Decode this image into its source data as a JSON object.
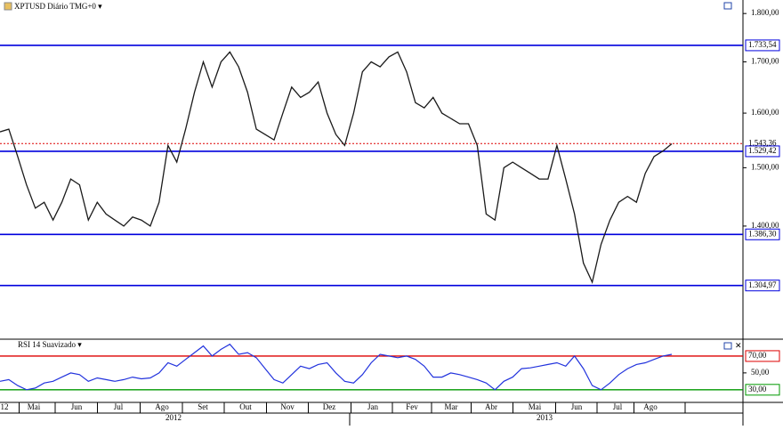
{
  "chart_data": [
    {
      "type": "line",
      "title": "XPTUSD Diário TMG+0 ▾",
      "log_scale": true,
      "color": "#1a1a1a",
      "values": [
        1565,
        1570,
        1520,
        1470,
        1430,
        1440,
        1410,
        1440,
        1480,
        1470,
        1410,
        1440,
        1420,
        1410,
        1400,
        1415,
        1410,
        1400,
        1440,
        1540,
        1510,
        1570,
        1640,
        1700,
        1650,
        1700,
        1720,
        1690,
        1640,
        1570,
        1560,
        1550,
        1600,
        1650,
        1630,
        1640,
        1660,
        1600,
        1560,
        1540,
        1600,
        1680,
        1700,
        1690,
        1710,
        1720,
        1680,
        1620,
        1610,
        1630,
        1600,
        1590,
        1580,
        1580,
        1540,
        1420,
        1410,
        1500,
        1510,
        1500,
        1490,
        1480,
        1480,
        1540,
        1480,
        1420,
        1340,
        1310,
        1370,
        1410,
        1440,
        1450,
        1440,
        1490,
        1520,
        1530,
        1543
      ],
      "ylim": [
        1226,
        1829
      ],
      "yticks": [
        {
          "value": 1800,
          "label": "1.800,00"
        },
        {
          "value": 1700,
          "label": "1.700,00"
        },
        {
          "value": 1600,
          "label": "1.600,00"
        },
        {
          "value": 1500,
          "label": "1.500,00"
        },
        {
          "value": 1400,
          "label": "1.400,00"
        }
      ],
      "levels": [
        {
          "value": 1733.54,
          "label": "1.733,54"
        },
        {
          "value": 1529.42,
          "label": "1.529,42"
        },
        {
          "value": 1386.3,
          "label": "1.386,30"
        },
        {
          "value": 1304.97,
          "label": "1.304,97"
        }
      ],
      "level_color": "#0000dd",
      "last_price": {
        "value": 1543.36,
        "label": "1.543,36"
      },
      "last_price_color": "#dd0000"
    },
    {
      "type": "line",
      "title": "RSI 14 Suavizado ▾",
      "color": "#2233dd",
      "values": [
        40,
        42,
        35,
        30,
        32,
        38,
        40,
        45,
        50,
        48,
        40,
        44,
        42,
        40,
        42,
        45,
        43,
        44,
        50,
        62,
        58,
        66,
        74,
        82,
        70,
        78,
        84,
        72,
        74,
        68,
        55,
        42,
        38,
        48,
        58,
        55,
        60,
        62,
        50,
        40,
        38,
        48,
        62,
        72,
        70,
        68,
        70,
        66,
        58,
        45,
        45,
        50,
        48,
        45,
        42,
        38,
        30,
        40,
        45,
        55,
        56,
        58,
        60,
        62,
        58,
        70,
        55,
        35,
        30,
        38,
        48,
        55,
        60,
        62,
        66,
        70,
        72
      ],
      "ylim": [
        15,
        90
      ],
      "yticks": [
        {
          "value": 50,
          "label": "50,00"
        }
      ],
      "levels": [
        {
          "value": 70,
          "label": "70,00",
          "color": "#dd0000"
        },
        {
          "value": 30,
          "label": "30,00",
          "color": "#009900"
        }
      ]
    }
  ],
  "time_axis": {
    "months": [
      "12",
      "Mai",
      "Jun",
      "Jul",
      "Ago",
      "Set",
      "Out",
      "Nov",
      "Dez",
      "Jan",
      "Fev",
      "Mar",
      "Abr",
      "Mai",
      "Jun",
      "Jul",
      "Ago"
    ],
    "years": [
      "2012",
      "2013"
    ]
  }
}
